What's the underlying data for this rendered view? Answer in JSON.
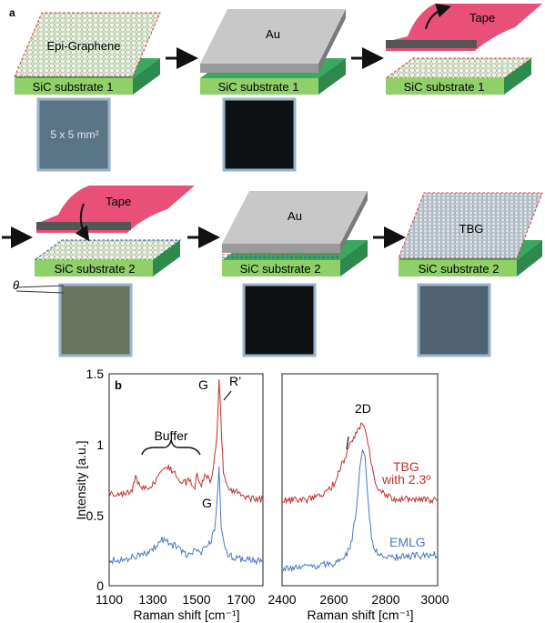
{
  "panel_a": {
    "label": "a",
    "steps": [
      {
        "substrate": "SiC substrate 1",
        "layer_text": "Epi-Graphene",
        "photo_text": "5 x 5 mm²"
      },
      {
        "substrate": "SiC substrate 1",
        "layer_text": "Au"
      },
      {
        "substrate": "SiC substrate 1",
        "layer_text": "Tape"
      },
      {
        "substrate": "SiC substrate 2",
        "layer_text": "Tape"
      },
      {
        "substrate": "SiC substrate 2",
        "layer_text": "Au"
      },
      {
        "substrate": "SiC substrate 2",
        "layer_text": "TBG"
      }
    ],
    "theta_label": "θ"
  },
  "panel_b": {
    "label": "b",
    "ylabel": "Intensity [a.u.]",
    "left_plot": {
      "xlabel": "Raman shift [cm⁻¹]",
      "xticks": [
        "1100",
        "1300",
        "1500",
        "1700"
      ],
      "yticks": [
        "0",
        "0.5",
        "1",
        "1.5"
      ],
      "annotations": {
        "buffer": "Buffer",
        "g_top": "G",
        "r_prime": "R’",
        "g_bottom": "G"
      }
    },
    "right_plot": {
      "xlabel": "Raman shift [cm⁻¹]",
      "xticks": [
        "2400",
        "2600",
        "2800",
        "3000"
      ],
      "annotations": {
        "two_d": "2D",
        "tbg": "TBG",
        "tbg_angle": "with 2.3º",
        "emlg": "EMLG"
      }
    }
  },
  "colors": {
    "tbg": "#c0302a",
    "emlg": "#4a78c0",
    "tape": "#e8507a",
    "substrate": "#3aa860"
  },
  "chart_data": [
    {
      "type": "line",
      "x_range": [
        1100,
        1800
      ],
      "ylim": [
        0,
        1.5
      ],
      "xlabel": "Raman shift [cm⁻¹]",
      "ylabel": "Intensity [a.u.]",
      "series": [
        {
          "name": "TBG",
          "x": [
            1100,
            1150,
            1200,
            1220,
            1250,
            1300,
            1340,
            1370,
            1400,
            1430,
            1460,
            1490,
            1500,
            1520,
            1540,
            1560,
            1575,
            1590,
            1600,
            1605,
            1612,
            1620,
            1640,
            1680,
            1700,
            1740,
            1800
          ],
          "y": [
            0.64,
            0.64,
            0.66,
            0.76,
            0.68,
            0.72,
            0.82,
            0.84,
            0.8,
            0.72,
            0.74,
            0.7,
            0.8,
            0.7,
            0.8,
            0.72,
            0.86,
            1.05,
            1.45,
            1.35,
            1.05,
            0.82,
            0.7,
            0.66,
            0.63,
            0.62,
            0.61
          ]
        },
        {
          "name": "EMLG",
          "x": [
            1100,
            1150,
            1200,
            1250,
            1300,
            1340,
            1370,
            1400,
            1430,
            1460,
            1490,
            1510,
            1530,
            1560,
            1580,
            1592,
            1600,
            1610,
            1630,
            1660,
            1700,
            1750,
            1800
          ],
          "y": [
            0.18,
            0.18,
            0.2,
            0.22,
            0.26,
            0.33,
            0.3,
            0.28,
            0.24,
            0.22,
            0.26,
            0.22,
            0.26,
            0.3,
            0.4,
            0.62,
            0.82,
            0.4,
            0.24,
            0.2,
            0.19,
            0.18,
            0.17
          ]
        }
      ]
    },
    {
      "type": "line",
      "x_range": [
        2400,
        3000
      ],
      "ylim": [
        0,
        1.5
      ],
      "xlabel": "Raman shift [cm⁻¹]",
      "series": [
        {
          "name": "TBG",
          "x": [
            2400,
            2500,
            2560,
            2600,
            2630,
            2660,
            2680,
            2700,
            2710,
            2720,
            2740,
            2760,
            2780,
            2820,
            2900,
            3000
          ],
          "y": [
            0.6,
            0.61,
            0.64,
            0.72,
            0.86,
            0.98,
            1.06,
            1.12,
            1.14,
            1.1,
            0.92,
            0.74,
            0.66,
            0.62,
            0.61,
            0.6
          ]
        },
        {
          "name": "EMLG",
          "x": [
            2400,
            2500,
            2600,
            2650,
            2670,
            2690,
            2700,
            2710,
            2720,
            2730,
            2745,
            2760,
            2800,
            2900,
            3000
          ],
          "y": [
            0.12,
            0.13,
            0.16,
            0.22,
            0.32,
            0.6,
            0.84,
            0.98,
            0.9,
            0.62,
            0.34,
            0.24,
            0.2,
            0.21,
            0.22
          ]
        }
      ]
    }
  ]
}
